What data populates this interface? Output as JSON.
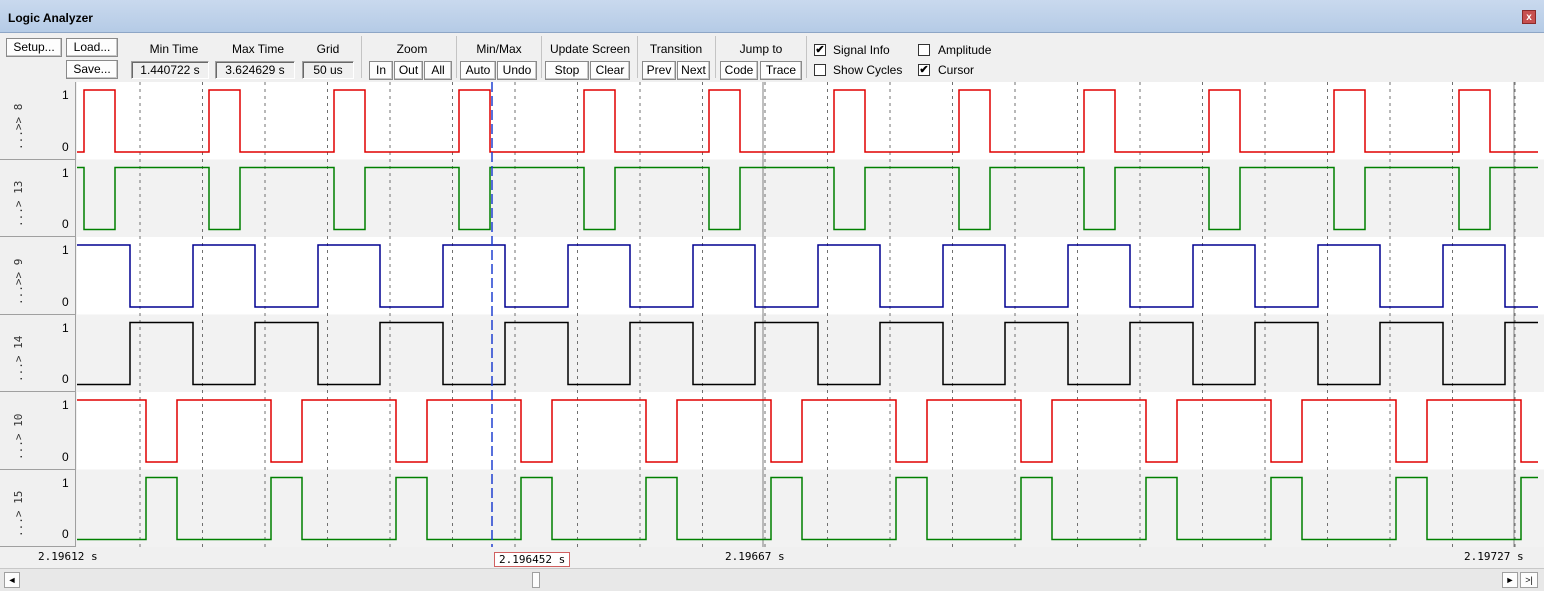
{
  "window": {
    "title": "Logic Analyzer",
    "close_glyph": "x"
  },
  "toolbar": {
    "setup": "Setup...",
    "load": "Load...",
    "save": "Save...",
    "min_time": {
      "label": "Min Time",
      "value": "1.440722 s"
    },
    "max_time": {
      "label": "Max Time",
      "value": "3.624629 s"
    },
    "grid": {
      "label": "Grid",
      "value": "50 us"
    },
    "zoom": {
      "label": "Zoom",
      "in": "In",
      "out": "Out",
      "all": "All"
    },
    "minmax": {
      "label": "Min/Max",
      "auto": "Auto",
      "undo": "Undo"
    },
    "update": {
      "label": "Update Screen",
      "stop": "Stop",
      "clear": "Clear"
    },
    "transition": {
      "label": "Transition",
      "prev": "Prev",
      "next": "Next"
    },
    "jump": {
      "label": "Jump to",
      "code": "Code",
      "trace": "Trace"
    },
    "options": {
      "signal_info": {
        "label": "Signal Info",
        "checked": true
      },
      "amplitude": {
        "label": "Amplitude",
        "checked": false
      },
      "show_cycles": {
        "label": "Show Cycles",
        "checked": false
      },
      "cursor": {
        "label": "Cursor",
        "checked": true
      }
    }
  },
  "signals": [
    {
      "name": "...>> 8",
      "high": "1",
      "low": "0",
      "color": "#e00000"
    },
    {
      "name": "...> 13",
      "high": "1",
      "low": "0",
      "color": "#008000"
    },
    {
      "name": "...>> 9",
      "high": "1",
      "low": "0",
      "color": "#000090"
    },
    {
      "name": "...> 14",
      "high": "1",
      "low": "0",
      "color": "#000000"
    },
    {
      "name": "...> 10",
      "high": "1",
      "low": "0",
      "color": "#e00000"
    },
    {
      "name": "...> 15",
      "high": "1",
      "low": "0",
      "color": "#008000"
    }
  ],
  "timeline": {
    "start": "2.19612 s",
    "cursor": "2.196452 s",
    "mid": "2.19667 s",
    "end": "2.19727 s"
  },
  "scrollbar": {
    "left": "◄",
    "right": "►",
    "end": ">|"
  }
}
